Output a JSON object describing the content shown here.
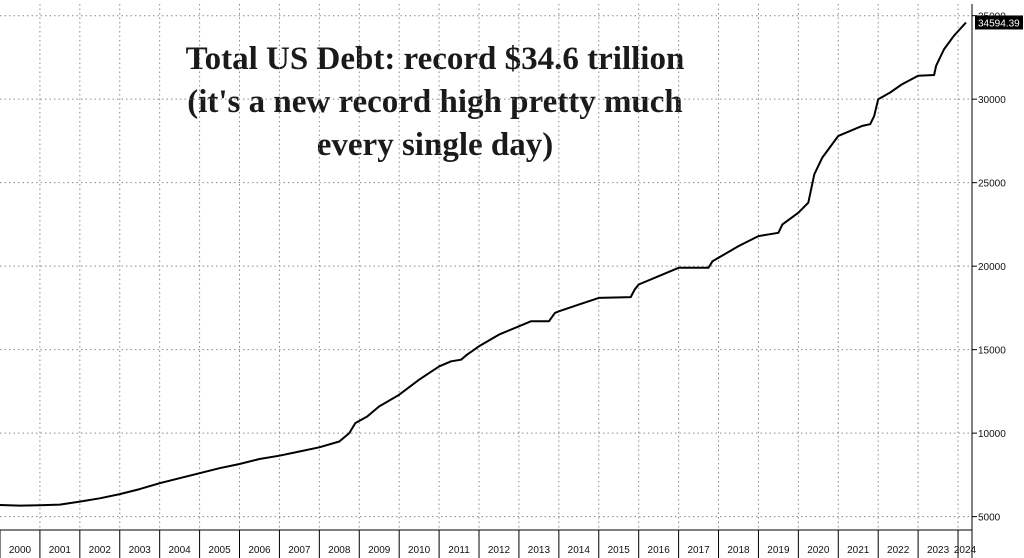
{
  "chart_data": {
    "type": "line",
    "title": "Total US Debt: record $34.6 trillion\n(it's a new record high pretty much\nevery single day)",
    "xlabel": "",
    "ylabel": "",
    "x_ticks": [
      "2000",
      "2001",
      "2002",
      "2003",
      "2004",
      "2005",
      "2006",
      "2007",
      "2008",
      "2009",
      "2010",
      "2011",
      "2012",
      "2013",
      "2014",
      "2015",
      "2016",
      "2017",
      "2018",
      "2019",
      "2020",
      "2021",
      "2022",
      "2023",
      "2024"
    ],
    "y_ticks": [
      5000,
      10000,
      15000,
      20000,
      25000,
      30000,
      35000
    ],
    "xlim": [
      2000,
      2024.35
    ],
    "ylim": [
      4200,
      35700
    ],
    "grid": true,
    "last_value_label": "34594.39",
    "series": [
      {
        "points": [
          [
            2000.0,
            5700
          ],
          [
            2000.5,
            5660
          ],
          [
            2001.0,
            5680
          ],
          [
            2001.5,
            5720
          ],
          [
            2002.0,
            5900
          ],
          [
            2002.5,
            6100
          ],
          [
            2003.0,
            6350
          ],
          [
            2003.5,
            6650
          ],
          [
            2004.0,
            7000
          ],
          [
            2004.5,
            7300
          ],
          [
            2005.0,
            7600
          ],
          [
            2005.5,
            7900
          ],
          [
            2006.0,
            8150
          ],
          [
            2006.5,
            8450
          ],
          [
            2007.0,
            8650
          ],
          [
            2007.5,
            8900
          ],
          [
            2008.0,
            9150
          ],
          [
            2008.5,
            9500
          ],
          [
            2008.75,
            10000
          ],
          [
            2008.9,
            10600
          ],
          [
            2009.2,
            11000
          ],
          [
            2009.5,
            11600
          ],
          [
            2010.0,
            12300
          ],
          [
            2010.5,
            13200
          ],
          [
            2011.0,
            14000
          ],
          [
            2011.3,
            14300
          ],
          [
            2011.55,
            14400
          ],
          [
            2011.7,
            14700
          ],
          [
            2012.0,
            15200
          ],
          [
            2012.5,
            15900
          ],
          [
            2013.0,
            16400
          ],
          [
            2013.3,
            16700
          ],
          [
            2013.75,
            16700
          ],
          [
            2013.9,
            17200
          ],
          [
            2014.0,
            17300
          ],
          [
            2014.5,
            17700
          ],
          [
            2015.0,
            18100
          ],
          [
            2015.8,
            18150
          ],
          [
            2015.9,
            18600
          ],
          [
            2016.0,
            18900
          ],
          [
            2016.5,
            19400
          ],
          [
            2017.0,
            19900
          ],
          [
            2017.75,
            19900
          ],
          [
            2017.85,
            20300
          ],
          [
            2018.0,
            20500
          ],
          [
            2018.5,
            21200
          ],
          [
            2019.0,
            21800
          ],
          [
            2019.5,
            22000
          ],
          [
            2019.6,
            22500
          ],
          [
            2020.0,
            23200
          ],
          [
            2020.25,
            23800
          ],
          [
            2020.4,
            25500
          ],
          [
            2020.6,
            26500
          ],
          [
            2021.0,
            27800
          ],
          [
            2021.6,
            28400
          ],
          [
            2021.8,
            28500
          ],
          [
            2021.9,
            29000
          ],
          [
            2022.0,
            30000
          ],
          [
            2022.3,
            30400
          ],
          [
            2022.6,
            30900
          ],
          [
            2023.0,
            31400
          ],
          [
            2023.4,
            31450
          ],
          [
            2023.45,
            32000
          ],
          [
            2023.65,
            33000
          ],
          [
            2023.9,
            33800
          ],
          [
            2024.2,
            34594.39
          ]
        ]
      }
    ]
  }
}
